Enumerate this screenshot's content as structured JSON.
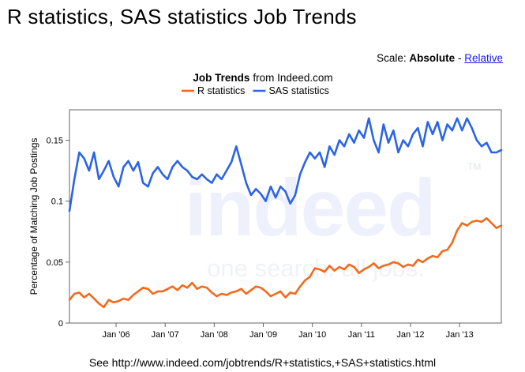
{
  "page": {
    "title": "R statistics, SAS statistics Job Trends",
    "scale_label": "Scale:",
    "scale_absolute": "Absolute",
    "scale_separator": "-",
    "scale_relative": "Relative",
    "footer": "See http://www.indeed.com/jobtrends/R+statistics,+SAS+statistics.html"
  },
  "watermark": {
    "logo": "indeed",
    "tagline": "one search. all jobs.",
    "trademark": "TM"
  },
  "colors": {
    "r_series": "#f26a1c",
    "sas_series": "#2b64e6",
    "relative_link": "#1a1ae6",
    "watermark": "#eef1fb"
  },
  "chart_data": {
    "type": "line",
    "title_bold": "Job Trends",
    "title_rest": "from Indeed.com",
    "ylabel": "Percentage of Matching Job Postings",
    "xlabel": "",
    "legend_position": "top",
    "ylim": [
      0,
      0.175
    ],
    "xlim": [
      2005.05,
      2013.85
    ],
    "grid": false,
    "y_ticks": [
      0,
      0.05,
      0.1,
      0.15
    ],
    "y_tick_labels": [
      "0",
      "0.05",
      "0.1",
      "0.15"
    ],
    "x_ticks": [
      2006,
      2007,
      2008,
      2009,
      2010,
      2011,
      2012,
      2013
    ],
    "x_tick_labels": [
      "Jan '06",
      "Jan '07",
      "Jan '08",
      "Jan '09",
      "Jan '10",
      "Jan '11",
      "Jan '12",
      "Jan '13"
    ],
    "series": [
      {
        "name": "R statistics",
        "color": "#f26a1c",
        "x": [
          2005.05,
          2005.15,
          2005.25,
          2005.35,
          2005.45,
          2005.55,
          2005.65,
          2005.75,
          2005.85,
          2005.95,
          2006.05,
          2006.15,
          2006.25,
          2006.35,
          2006.45,
          2006.55,
          2006.65,
          2006.75,
          2006.85,
          2006.95,
          2007.05,
          2007.15,
          2007.25,
          2007.35,
          2007.45,
          2007.55,
          2007.65,
          2007.75,
          2007.85,
          2007.95,
          2008.05,
          2008.15,
          2008.25,
          2008.35,
          2008.45,
          2008.55,
          2008.65,
          2008.75,
          2008.85,
          2008.95,
          2009.05,
          2009.15,
          2009.25,
          2009.35,
          2009.45,
          2009.55,
          2009.65,
          2009.75,
          2009.85,
          2009.95,
          2010.05,
          2010.15,
          2010.25,
          2010.35,
          2010.45,
          2010.55,
          2010.65,
          2010.75,
          2010.85,
          2010.95,
          2011.05,
          2011.15,
          2011.25,
          2011.35,
          2011.45,
          2011.55,
          2011.65,
          2011.75,
          2011.85,
          2011.95,
          2012.05,
          2012.15,
          2012.25,
          2012.35,
          2012.45,
          2012.55,
          2012.65,
          2012.75,
          2012.85,
          2012.95,
          2013.05,
          2013.15,
          2013.25,
          2013.35,
          2013.45,
          2013.55,
          2013.65,
          2013.75,
          2013.85
        ],
        "values": [
          0.019,
          0.024,
          0.025,
          0.021,
          0.024,
          0.02,
          0.016,
          0.013,
          0.019,
          0.017,
          0.018,
          0.02,
          0.019,
          0.023,
          0.026,
          0.029,
          0.028,
          0.024,
          0.026,
          0.026,
          0.028,
          0.03,
          0.027,
          0.031,
          0.029,
          0.033,
          0.028,
          0.03,
          0.029,
          0.025,
          0.022,
          0.024,
          0.023,
          0.025,
          0.026,
          0.028,
          0.024,
          0.027,
          0.03,
          0.029,
          0.026,
          0.022,
          0.024,
          0.026,
          0.021,
          0.025,
          0.024,
          0.03,
          0.035,
          0.038,
          0.045,
          0.044,
          0.042,
          0.047,
          0.043,
          0.046,
          0.044,
          0.048,
          0.046,
          0.041,
          0.044,
          0.046,
          0.049,
          0.045,
          0.047,
          0.048,
          0.05,
          0.049,
          0.046,
          0.048,
          0.047,
          0.052,
          0.05,
          0.053,
          0.055,
          0.054,
          0.059,
          0.06,
          0.066,
          0.076,
          0.082,
          0.08,
          0.083,
          0.084,
          0.083,
          0.086,
          0.082,
          0.078,
          0.08
        ]
      },
      {
        "name": "SAS statistics",
        "color": "#2b64e6",
        "x": [
          2005.05,
          2005.15,
          2005.25,
          2005.35,
          2005.45,
          2005.55,
          2005.65,
          2005.75,
          2005.85,
          2005.95,
          2006.05,
          2006.15,
          2006.25,
          2006.35,
          2006.45,
          2006.55,
          2006.65,
          2006.75,
          2006.85,
          2006.95,
          2007.05,
          2007.15,
          2007.25,
          2007.35,
          2007.45,
          2007.55,
          2007.65,
          2007.75,
          2007.85,
          2007.95,
          2008.05,
          2008.15,
          2008.25,
          2008.35,
          2008.45,
          2008.55,
          2008.65,
          2008.75,
          2008.85,
          2008.95,
          2009.05,
          2009.15,
          2009.25,
          2009.35,
          2009.45,
          2009.55,
          2009.65,
          2009.75,
          2009.85,
          2009.95,
          2010.05,
          2010.15,
          2010.25,
          2010.35,
          2010.45,
          2010.55,
          2010.65,
          2010.75,
          2010.85,
          2010.95,
          2011.05,
          2011.15,
          2011.25,
          2011.35,
          2011.45,
          2011.55,
          2011.65,
          2011.75,
          2011.85,
          2011.95,
          2012.05,
          2012.15,
          2012.25,
          2012.35,
          2012.45,
          2012.55,
          2012.65,
          2012.75,
          2012.85,
          2012.95,
          2013.05,
          2013.15,
          2013.25,
          2013.35,
          2013.45,
          2013.55,
          2013.65,
          2013.75,
          2013.85
        ],
        "values": [
          0.092,
          0.118,
          0.14,
          0.135,
          0.125,
          0.14,
          0.118,
          0.125,
          0.133,
          0.12,
          0.112,
          0.128,
          0.133,
          0.125,
          0.132,
          0.115,
          0.112,
          0.123,
          0.128,
          0.122,
          0.118,
          0.128,
          0.133,
          0.128,
          0.125,
          0.12,
          0.118,
          0.122,
          0.118,
          0.115,
          0.122,
          0.118,
          0.125,
          0.132,
          0.145,
          0.13,
          0.115,
          0.105,
          0.11,
          0.106,
          0.1,
          0.112,
          0.103,
          0.112,
          0.108,
          0.098,
          0.105,
          0.122,
          0.132,
          0.14,
          0.135,
          0.14,
          0.128,
          0.145,
          0.138,
          0.15,
          0.145,
          0.155,
          0.148,
          0.158,
          0.152,
          0.168,
          0.15,
          0.14,
          0.163,
          0.148,
          0.158,
          0.14,
          0.15,
          0.145,
          0.155,
          0.16,
          0.145,
          0.165,
          0.155,
          0.165,
          0.15,
          0.163,
          0.158,
          0.168,
          0.158,
          0.168,
          0.16,
          0.15,
          0.145,
          0.148,
          0.14,
          0.14,
          0.142
        ]
      }
    ]
  }
}
